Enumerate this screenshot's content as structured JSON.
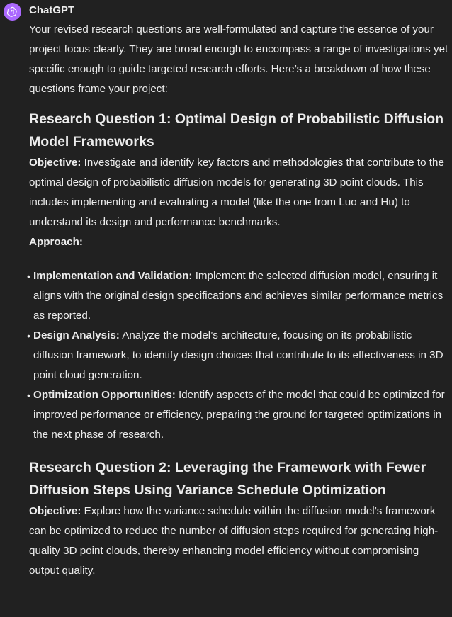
{
  "author": "ChatGPT",
  "avatar_icon": "openai-logo-icon",
  "avatar_color": "#ab68ff",
  "intro": "Your revised research questions are well-formulated and capture the essence of your project focus clearly. They are broad enough to encompass a range of investigations yet specific enough to guide targeted research efforts. Here’s a breakdown of how these questions frame your project:",
  "rq1": {
    "heading": "Research Question 1: Optimal Design of Probabilistic Diffusion Model Frameworks",
    "objective_label": "Objective:",
    "objective_text": " Investigate and identify key factors and methodologies that contribute to the optimal design of probabilistic diffusion models for generating 3D point clouds. This includes implementing and evaluating a model (like the one from Luo and Hu) to understand its design and performance benchmarks.",
    "approach_label": "Approach:",
    "bullets": [
      {
        "label": "Implementation and Validation:",
        "text": " Implement the selected diffusion model, ensuring it aligns with the original design specifications and achieves similar performance metrics as reported."
      },
      {
        "label": "Design Analysis:",
        "text": " Analyze the model’s architecture, focusing on its probabilistic diffusion framework, to identify design choices that contribute to its effectiveness in 3D point cloud generation."
      },
      {
        "label": "Optimization Opportunities:",
        "text": " Identify aspects of the model that could be optimized for improved performance or efficiency, preparing the ground for targeted optimizations in the next phase of research."
      }
    ]
  },
  "rq2": {
    "heading": "Research Question 2: Leveraging the Framework with Fewer Diffusion Steps Using Variance Schedule Optimization",
    "objective_label": "Objective:",
    "objective_text": " Explore how the variance schedule within the diffusion model’s framework can be optimized to reduce the number of diffusion steps required for generating high-quality 3D point clouds, thereby enhancing model efficiency without compromising output quality."
  }
}
